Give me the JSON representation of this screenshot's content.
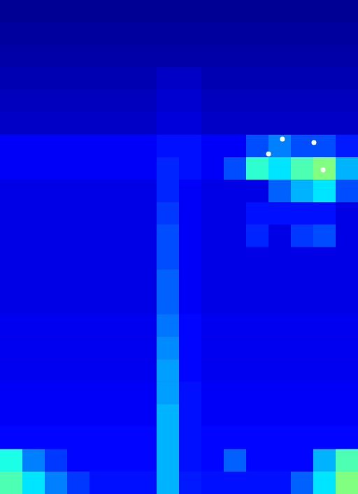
{
  "chart_data": {
    "type": "heatmap",
    "tick_labels": false,
    "grid": false,
    "xlim": [
      0,
      16
    ],
    "ylim": [
      0,
      22
    ],
    "color_range": [
      0,
      1
    ],
    "cells": [
      [
        0.02,
        0.02,
        0.02,
        0.02,
        0.02,
        0.02,
        0.02,
        0.02,
        0.02,
        0.02,
        0.02,
        0.02,
        0.02,
        0.02,
        0.02,
        0.02
      ],
      [
        0.03,
        0.03,
        0.03,
        0.03,
        0.03,
        0.03,
        0.03,
        0.03,
        0.03,
        0.03,
        0.03,
        0.03,
        0.03,
        0.03,
        0.03,
        0.03
      ],
      [
        0.04,
        0.04,
        0.04,
        0.04,
        0.04,
        0.04,
        0.04,
        0.04,
        0.04,
        0.04,
        0.04,
        0.04,
        0.04,
        0.04,
        0.04,
        0.04
      ],
      [
        0.05,
        0.05,
        0.05,
        0.05,
        0.05,
        0.05,
        0.05,
        0.07,
        0.07,
        0.05,
        0.05,
        0.05,
        0.05,
        0.05,
        0.05,
        0.05
      ],
      [
        0.06,
        0.06,
        0.06,
        0.06,
        0.06,
        0.06,
        0.06,
        0.08,
        0.08,
        0.06,
        0.06,
        0.06,
        0.06,
        0.06,
        0.06,
        0.06
      ],
      [
        0.07,
        0.07,
        0.07,
        0.07,
        0.07,
        0.07,
        0.07,
        0.09,
        0.09,
        0.07,
        0.07,
        0.07,
        0.07,
        0.07,
        0.07,
        0.07
      ],
      [
        0.12,
        0.12,
        0.12,
        0.12,
        0.12,
        0.12,
        0.12,
        0.14,
        0.14,
        0.12,
        0.12,
        0.2,
        0.25,
        0.2,
        0.2,
        0.15
      ],
      [
        0.12,
        0.12,
        0.12,
        0.12,
        0.12,
        0.12,
        0.12,
        0.16,
        0.14,
        0.12,
        0.2,
        0.42,
        0.35,
        0.45,
        0.5,
        0.3
      ],
      [
        0.1,
        0.1,
        0.1,
        0.1,
        0.1,
        0.1,
        0.1,
        0.16,
        0.12,
        0.1,
        0.1,
        0.1,
        0.22,
        0.3,
        0.35,
        0.2
      ],
      [
        0.1,
        0.1,
        0.1,
        0.1,
        0.1,
        0.1,
        0.1,
        0.18,
        0.12,
        0.1,
        0.1,
        0.14,
        0.14,
        0.14,
        0.14,
        0.1
      ],
      [
        0.1,
        0.1,
        0.1,
        0.1,
        0.1,
        0.1,
        0.1,
        0.2,
        0.12,
        0.1,
        0.1,
        0.16,
        0.1,
        0.18,
        0.2,
        0.1
      ],
      [
        0.1,
        0.1,
        0.1,
        0.1,
        0.1,
        0.1,
        0.1,
        0.2,
        0.12,
        0.1,
        0.1,
        0.1,
        0.1,
        0.1,
        0.1,
        0.1
      ],
      [
        0.1,
        0.1,
        0.1,
        0.1,
        0.1,
        0.1,
        0.1,
        0.22,
        0.12,
        0.1,
        0.1,
        0.1,
        0.1,
        0.1,
        0.1,
        0.1
      ],
      [
        0.1,
        0.1,
        0.1,
        0.1,
        0.1,
        0.1,
        0.1,
        0.22,
        0.12,
        0.1,
        0.1,
        0.1,
        0.1,
        0.1,
        0.1,
        0.1
      ],
      [
        0.11,
        0.11,
        0.11,
        0.11,
        0.11,
        0.11,
        0.11,
        0.24,
        0.13,
        0.11,
        0.11,
        0.11,
        0.11,
        0.11,
        0.11,
        0.11
      ],
      [
        0.11,
        0.11,
        0.11,
        0.11,
        0.11,
        0.11,
        0.11,
        0.26,
        0.13,
        0.11,
        0.11,
        0.11,
        0.11,
        0.11,
        0.11,
        0.11
      ],
      [
        0.11,
        0.11,
        0.11,
        0.11,
        0.11,
        0.11,
        0.11,
        0.28,
        0.13,
        0.11,
        0.11,
        0.11,
        0.11,
        0.11,
        0.11,
        0.11
      ],
      [
        0.12,
        0.12,
        0.12,
        0.12,
        0.12,
        0.12,
        0.12,
        0.28,
        0.14,
        0.12,
        0.12,
        0.12,
        0.12,
        0.12,
        0.12,
        0.12
      ],
      [
        0.12,
        0.12,
        0.12,
        0.12,
        0.12,
        0.12,
        0.12,
        0.3,
        0.14,
        0.12,
        0.12,
        0.12,
        0.12,
        0.12,
        0.12,
        0.12
      ],
      [
        0.13,
        0.13,
        0.13,
        0.13,
        0.13,
        0.13,
        0.13,
        0.3,
        0.14,
        0.13,
        0.13,
        0.13,
        0.13,
        0.13,
        0.13,
        0.13
      ],
      [
        0.4,
        0.25,
        0.18,
        0.13,
        0.13,
        0.13,
        0.13,
        0.3,
        0.14,
        0.13,
        0.22,
        0.13,
        0.13,
        0.13,
        0.3,
        0.45
      ],
      [
        0.45,
        0.35,
        0.25,
        0.18,
        0.14,
        0.14,
        0.14,
        0.3,
        0.15,
        0.14,
        0.14,
        0.14,
        0.14,
        0.22,
        0.35,
        0.5
      ]
    ],
    "points": {
      "x": [
        12.62,
        14.03,
        12.0,
        14.44
      ],
      "y": [
        6.19,
        6.35,
        6.85,
        7.56
      ],
      "color": "#ffffff"
    }
  }
}
